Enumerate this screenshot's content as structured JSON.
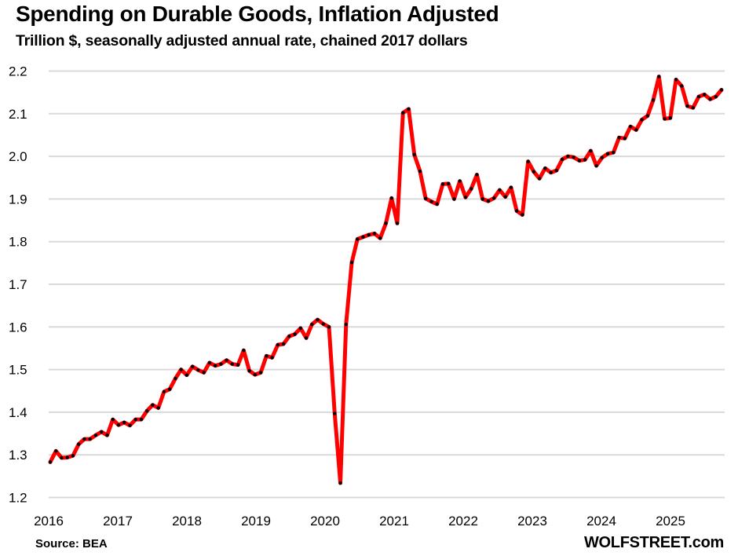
{
  "header": {
    "title": "Spending on Durable Goods, Inflation Adjusted",
    "subtitle": "Trillion $, seasonally adjusted annual rate, chained 2017 dollars"
  },
  "footer": {
    "source": "Source: BEA",
    "brand": "WOLFSTREET.com"
  },
  "colors": {
    "line": "#FF0000",
    "marker": "#000000",
    "grid": "#D9D9D9"
  },
  "chart_data": {
    "type": "line",
    "title": "Spending on Durable Goods, Inflation Adjusted",
    "subtitle": "Trillion $, seasonally adjusted annual rate, chained 2017 dollars",
    "xlabel": "",
    "ylabel": "",
    "ylim": [
      1.2,
      2.2
    ],
    "yticks": [
      "1.2",
      "1.3",
      "1.4",
      "1.5",
      "1.6",
      "1.7",
      "1.8",
      "1.9",
      "2.0",
      "2.1",
      "2.2"
    ],
    "xticks": [
      "2016",
      "2017",
      "2018",
      "2019",
      "2020",
      "2021",
      "2022",
      "2023",
      "2024",
      "2025"
    ],
    "grid": "horizontal",
    "legend": "none",
    "frequency": "monthly",
    "start": "2016-01",
    "series": [
      {
        "name": "Spending on Durable Goods",
        "values": [
          1.283,
          1.309,
          1.293,
          1.294,
          1.298,
          1.325,
          1.337,
          1.337,
          1.346,
          1.354,
          1.346,
          1.383,
          1.37,
          1.376,
          1.369,
          1.383,
          1.383,
          1.403,
          1.417,
          1.41,
          1.448,
          1.454,
          1.479,
          1.5,
          1.487,
          1.507,
          1.499,
          1.493,
          1.516,
          1.509,
          1.513,
          1.522,
          1.513,
          1.511,
          1.545,
          1.497,
          1.488,
          1.493,
          1.532,
          1.528,
          1.558,
          1.56,
          1.578,
          1.583,
          1.597,
          1.574,
          1.606,
          1.617,
          1.607,
          1.6,
          1.397,
          1.234,
          1.606,
          1.751,
          1.806,
          1.811,
          1.816,
          1.819,
          1.808,
          1.843,
          1.902,
          1.843,
          2.102,
          2.111,
          2.004,
          1.965,
          1.901,
          1.894,
          1.888,
          1.935,
          1.936,
          1.9,
          1.942,
          1.904,
          1.924,
          1.957,
          1.9,
          1.895,
          1.902,
          1.921,
          1.905,
          1.927,
          1.872,
          1.863,
          1.988,
          1.964,
          1.948,
          1.972,
          1.962,
          1.967,
          1.993,
          2.0,
          1.998,
          1.99,
          1.992,
          2.013,
          1.978,
          1.997,
          2.006,
          2.009,
          2.044,
          2.042,
          2.07,
          2.062,
          2.086,
          2.095,
          2.132,
          2.187,
          2.088,
          2.09,
          2.18,
          2.165,
          2.118,
          2.114,
          2.14,
          2.145,
          2.134,
          2.14,
          2.156
        ]
      }
    ]
  }
}
